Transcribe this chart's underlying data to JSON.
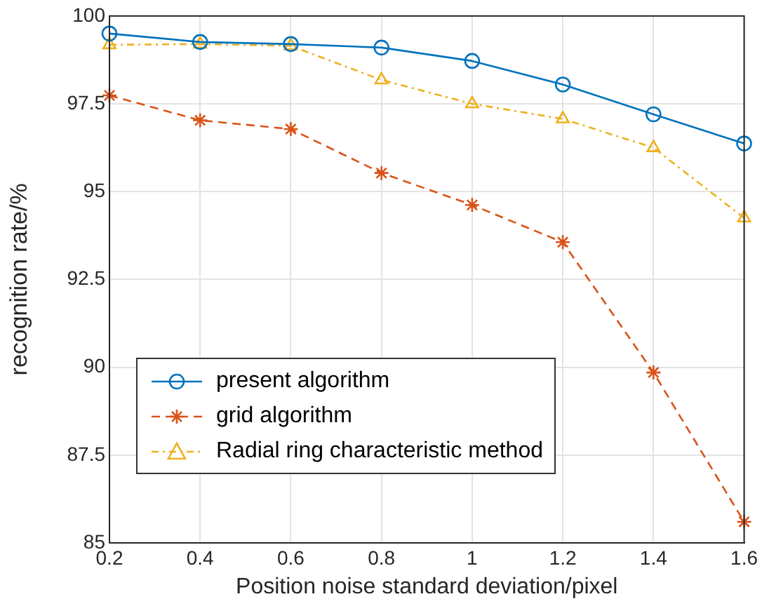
{
  "chart_data": {
    "type": "line",
    "xlabel": "Position noise standard deviation/pixel",
    "ylabel": "recognition rate/%",
    "x": [
      0.2,
      0.4,
      0.6,
      0.8,
      1.0,
      1.2,
      1.4,
      1.6
    ],
    "series": [
      {
        "name": "present algorithm",
        "color": "#0072bd",
        "marker": "circle",
        "line_style": "solid",
        "values": [
          99.5,
          99.26,
          99.2,
          99.1,
          98.72,
          98.05,
          97.2,
          96.37
        ]
      },
      {
        "name": "grid algorithm",
        "color": "#d95319",
        "marker": "cross",
        "line_style": "dashed",
        "values": [
          97.74,
          97.03,
          96.78,
          95.53,
          94.62,
          93.56,
          89.85,
          85.6
        ]
      },
      {
        "name": "Radial ring characteristic method",
        "color": "#edb120",
        "marker": "triangle",
        "line_style": "dotted",
        "values": [
          99.18,
          99.2,
          99.15,
          98.18,
          97.5,
          97.07,
          96.25,
          94.25
        ]
      }
    ],
    "xlim": [
      0.2,
      1.6
    ],
    "xticks": [
      0.2,
      0.4,
      0.6,
      0.8,
      1,
      1.2,
      1.4,
      1.6
    ],
    "ylim": [
      85,
      100
    ],
    "yticks": [
      85,
      87.5,
      90,
      92.5,
      95,
      97.5,
      100
    ],
    "grid": true,
    "legend": "bottom left"
  }
}
